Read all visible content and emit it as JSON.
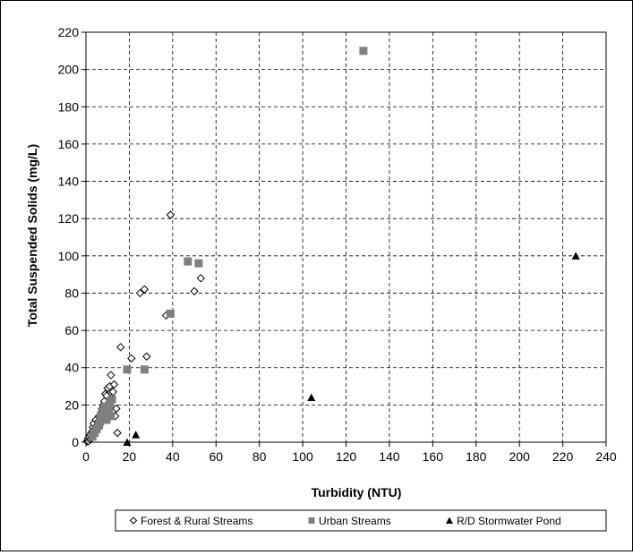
{
  "chart_data": {
    "type": "scatter",
    "title": "",
    "xlabel": "Turbidity (NTU)",
    "ylabel": "Total Suspended Solids (mg/L)",
    "xlim": [
      0,
      240
    ],
    "ylim": [
      0,
      220
    ],
    "xticks": [
      0,
      20,
      40,
      60,
      80,
      100,
      120,
      140,
      160,
      180,
      200,
      220,
      240
    ],
    "yticks": [
      0,
      20,
      40,
      60,
      80,
      100,
      120,
      140,
      160,
      180,
      200,
      220
    ],
    "grid": true,
    "legend_position": "bottom",
    "series": [
      {
        "name": "Forest & Rural Streams",
        "marker": "diamond-open",
        "color": "#000000",
        "points": [
          [
            0.5,
            0.5
          ],
          [
            0.8,
            1
          ],
          [
            1,
            2
          ],
          [
            1.2,
            0.5
          ],
          [
            1.5,
            3
          ],
          [
            1.8,
            1.5
          ],
          [
            2,
            4
          ],
          [
            2.2,
            2
          ],
          [
            2.5,
            5
          ],
          [
            2.8,
            3
          ],
          [
            3,
            6
          ],
          [
            3.2,
            8
          ],
          [
            3.5,
            10
          ],
          [
            4,
            7
          ],
          [
            4.5,
            12
          ],
          [
            5,
            9
          ],
          [
            5.5,
            11
          ],
          [
            6,
            14
          ],
          [
            6.5,
            13
          ],
          [
            7,
            16
          ],
          [
            7.5,
            18
          ],
          [
            8,
            20
          ],
          [
            8.5,
            22
          ],
          [
            9,
            26
          ],
          [
            9.5,
            25
          ],
          [
            10,
            29
          ],
          [
            10.5,
            21
          ],
          [
            11,
            30
          ],
          [
            11.5,
            36
          ],
          [
            12,
            24
          ],
          [
            12.5,
            27
          ],
          [
            13,
            31
          ],
          [
            13.5,
            14
          ],
          [
            14,
            18
          ],
          [
            14.5,
            5
          ],
          [
            16,
            51
          ],
          [
            21,
            45
          ],
          [
            25,
            80
          ],
          [
            27,
            82
          ],
          [
            28,
            46
          ],
          [
            37,
            68
          ],
          [
            39,
            122
          ],
          [
            50,
            81
          ],
          [
            53,
            88
          ]
        ]
      },
      {
        "name": "Urban Streams",
        "marker": "square-filled",
        "color": "#7f7f7f",
        "points": [
          [
            3,
            3
          ],
          [
            4,
            5
          ],
          [
            5,
            7
          ],
          [
            6,
            9
          ],
          [
            6.5,
            11
          ],
          [
            7,
            14
          ],
          [
            7.5,
            13
          ],
          [
            8,
            15
          ],
          [
            8.5,
            17
          ],
          [
            9,
            19
          ],
          [
            9.5,
            12
          ],
          [
            10,
            16
          ],
          [
            10.5,
            18
          ],
          [
            11,
            21
          ],
          [
            11.5,
            14
          ],
          [
            12,
            23
          ],
          [
            19,
            39
          ],
          [
            27,
            39
          ],
          [
            39,
            69
          ],
          [
            47,
            97
          ],
          [
            52,
            96
          ],
          [
            128,
            210
          ]
        ]
      },
      {
        "name": "R/D Stormwater Pond",
        "marker": "triangle-filled",
        "color": "#000000",
        "points": [
          [
            19,
            0
          ],
          [
            23,
            4
          ],
          [
            104,
            24
          ],
          [
            226,
            100
          ]
        ]
      }
    ]
  }
}
